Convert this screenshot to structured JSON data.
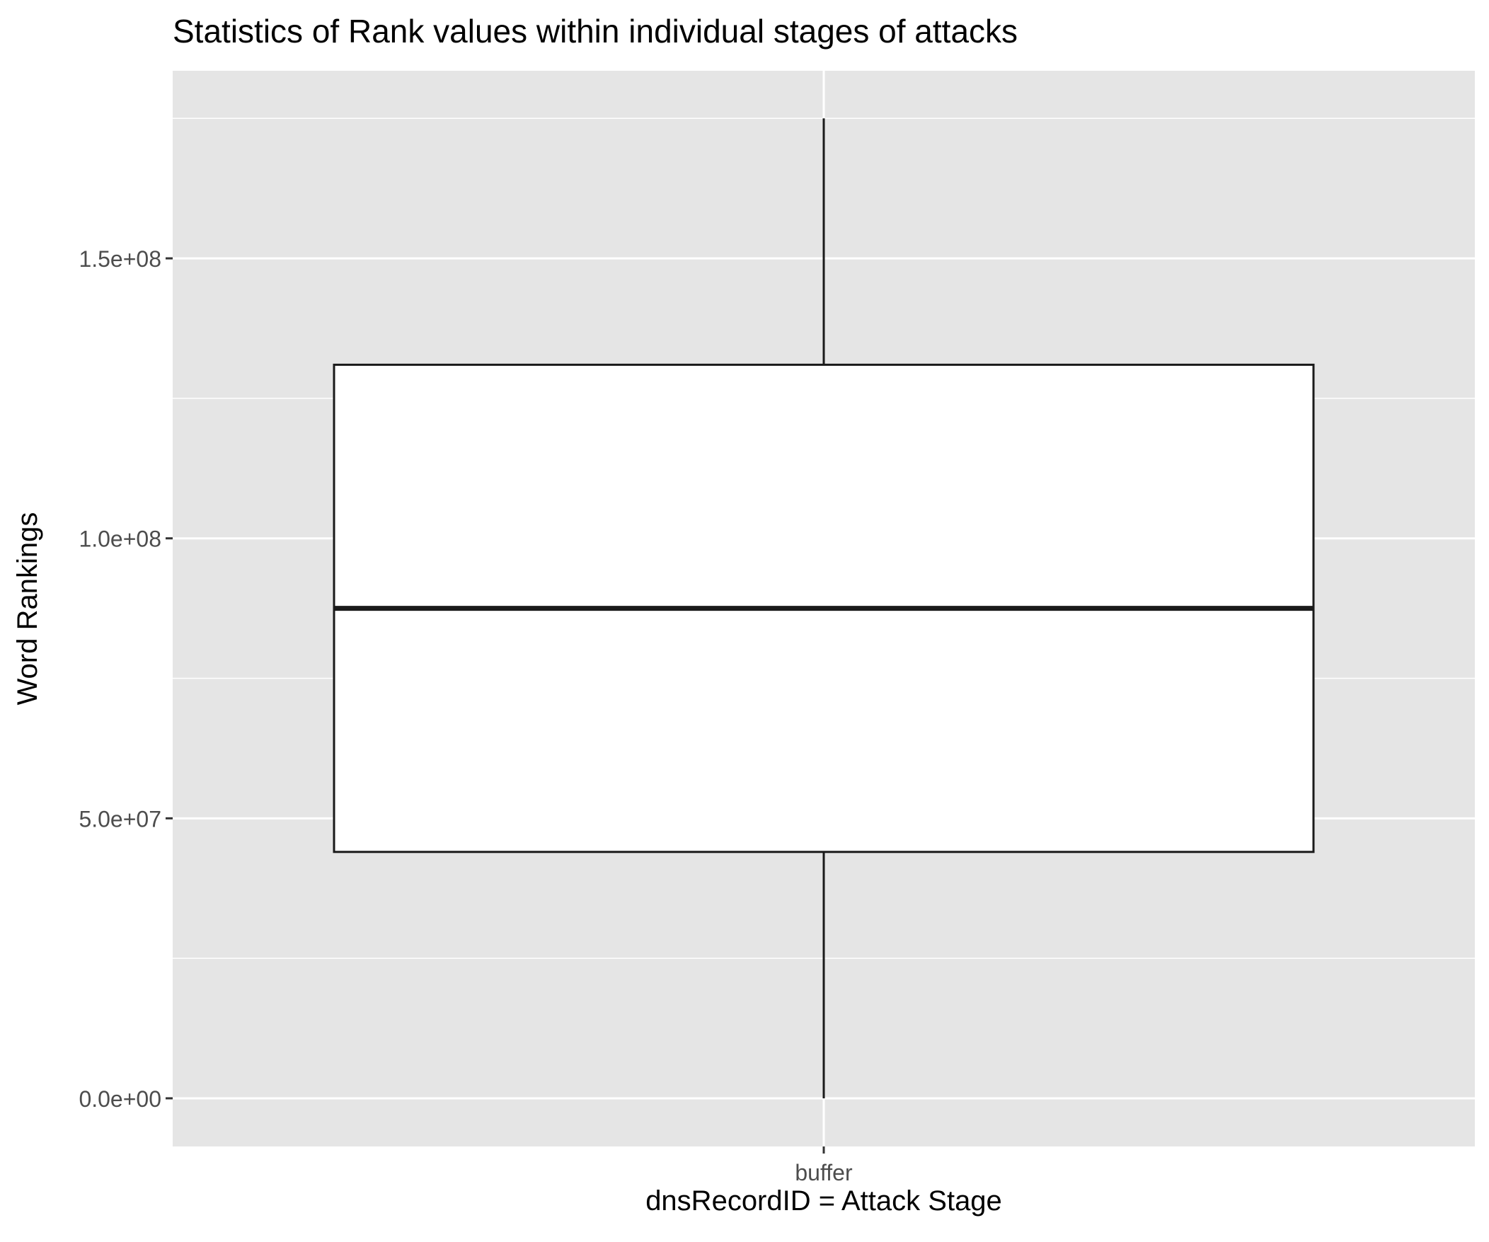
{
  "chart_data": {
    "type": "boxplot",
    "title": "Statistics of Rank values within individual stages of attacks",
    "xlabel": "dnsRecordID = Attack Stage",
    "ylabel": "Word Rankings",
    "categories": [
      "buffer"
    ],
    "boxes": [
      {
        "category": "buffer",
        "whisker_low": 0,
        "q1": 44000000,
        "median": 87500000,
        "q3": 131000000,
        "whisker_high": 175000000
      }
    ],
    "ylim": [
      -8600000,
      183500000
    ],
    "y_major_ticks": [
      0,
      50000000,
      100000000,
      150000000
    ],
    "y_tick_labels": [
      "0.0e+00",
      "5.0e+07",
      "1.0e+08",
      "1.5e+08"
    ],
    "y_minor_ticks": [
      25000000,
      75000000,
      125000000,
      175000000
    ],
    "grid": true,
    "legend": "none",
    "colors": {
      "panel_background": "#e5e5e5",
      "grid": "#ffffff",
      "box_fill": "#ffffff",
      "box_line": "#1a1a1a",
      "title": "#000000",
      "axis_text": "#4d4d4d",
      "axis_title": "#000000",
      "tick": "#333333"
    }
  }
}
